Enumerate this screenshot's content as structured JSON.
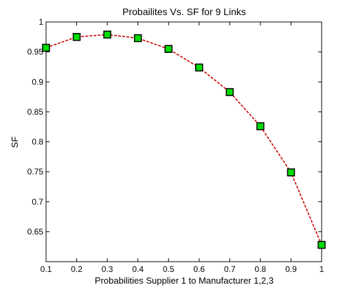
{
  "chart_data": {
    "type": "line",
    "title": "Probailites Vs. SF for 9 Links",
    "xlabel": "Probabilities Supplier 1 to Manufacturer 1,2,3",
    "ylabel": "SF",
    "xlim": [
      0.1,
      1.0
    ],
    "ylim": [
      0.6,
      1.0
    ],
    "xticks": [
      0.1,
      0.2,
      0.3,
      0.4,
      0.5,
      0.6,
      0.7,
      0.8,
      0.9,
      1.0
    ],
    "xtick_labels": [
      "0.1",
      "0.2",
      "0.3",
      "0.4",
      "0.5",
      "0.6",
      "0.7",
      "0.8",
      "0.9",
      "1"
    ],
    "yticks": [
      0.65,
      0.7,
      0.75,
      0.8,
      0.85,
      0.9,
      0.95,
      1.0
    ],
    "ytick_labels": [
      "0.65",
      "0.7",
      "0.75",
      "0.8",
      "0.85",
      "0.9",
      "0.95",
      "1"
    ],
    "grid": false,
    "series": [
      {
        "x": [
          0.1,
          0.2,
          0.3,
          0.4,
          0.5,
          0.6,
          0.7,
          0.8,
          0.9,
          1.0
        ],
        "y": [
          0.957,
          0.975,
          0.979,
          0.973,
          0.955,
          0.924,
          0.883,
          0.826,
          0.749,
          0.628
        ],
        "line_color": "#cc0000",
        "line_style": "dashed",
        "marker": "square",
        "marker_face_color": "#00dd00",
        "marker_edge_color": "#000000"
      }
    ]
  }
}
